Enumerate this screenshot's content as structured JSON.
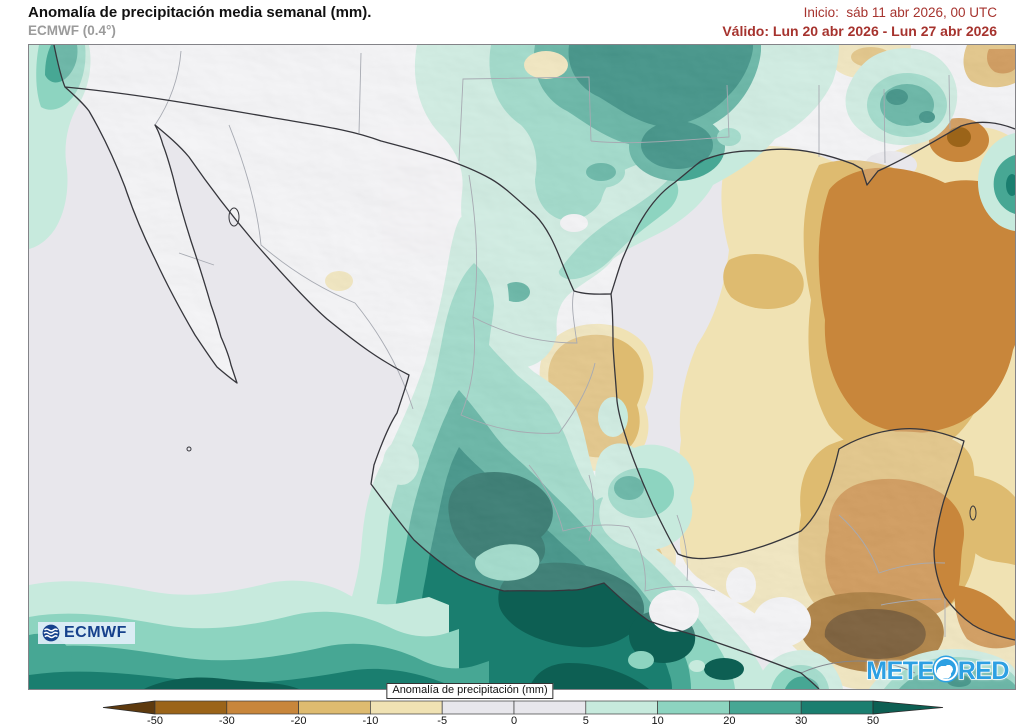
{
  "header": {
    "title": "Anomalía de precipitación media semanal (mm).",
    "subtitle": "ECMWF (0.4°)",
    "init_line": "Inicio:  sáb 11 abr 2026, 00 UTC",
    "valid_line": "Válido: Lun 20 abr 2026 - Lun 27 abr 2026"
  },
  "colorbar": {
    "label": "Anomalía de precipitación (mm)",
    "ticks": [
      "-50",
      "-30",
      "-20",
      "-10",
      "-5",
      "0",
      "5",
      "10",
      "20",
      "30",
      "50"
    ],
    "segment_colors": [
      "#9b6419",
      "#c8863b",
      "#debb70",
      "#f0e2b3",
      "#e8e7ec",
      "#e8e7ec",
      "#c7eadd",
      "#8dd4c0",
      "#47a794",
      "#1a7e6f"
    ],
    "arrow_left_color": "#5e3a0e",
    "arrow_right_color": "#0d5f53"
  },
  "palette": {
    "ocean": "#e8e7ec",
    "land": "#f4f3f6",
    "neg_extreme": "#5e3a0e",
    "neg_50_30": "#9b6419",
    "neg_30_20": "#c8863b",
    "neg_20_10": "#debb70",
    "neg_10_5": "#f0e2b3",
    "neutral": "#e8e7ec",
    "pos_5_10": "#c7eadd",
    "pos_10_20": "#8dd4c0",
    "pos_20_30": "#47a794",
    "pos_30_50": "#1a7e6f",
    "pos_extreme": "#0d5f53"
  },
  "logos": {
    "ecmwf": "ECMWF",
    "meteored_prefix": "METE",
    "meteored_suffix": "RED"
  },
  "colors": {
    "header_red": "#a6332e",
    "subtitle_gray": "#9b9b9b",
    "coastline": "#36363c",
    "state_border": "#a7aab2"
  }
}
